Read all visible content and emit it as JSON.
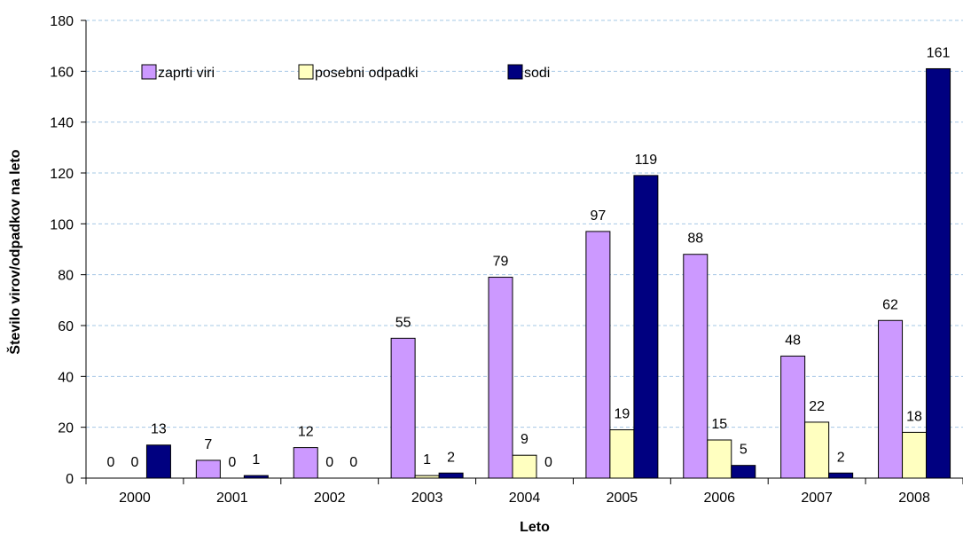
{
  "chart_data": {
    "type": "bar",
    "xlabel": "Leto",
    "ylabel": "Število virov/odpadkov na leto",
    "ylim": [
      0,
      180
    ],
    "ytick_step": 20,
    "grid": "horizontal dashed",
    "legend_position": "top-left",
    "categories": [
      "2000",
      "2001",
      "2002",
      "2003",
      "2004",
      "2005",
      "2006",
      "2007",
      "2008"
    ],
    "series": [
      {
        "name": "zaprti viri",
        "color": "#cc99ff",
        "values": [
          0,
          7,
          12,
          55,
          79,
          97,
          88,
          48,
          62
        ]
      },
      {
        "name": "posebni odpadki",
        "color": "#ffffc0",
        "values": [
          0,
          0,
          0,
          1,
          9,
          19,
          15,
          22,
          18
        ]
      },
      {
        "name": "sodi",
        "color": "#000080",
        "values": [
          13,
          1,
          0,
          2,
          0,
          119,
          5,
          2,
          161
        ]
      }
    ]
  }
}
